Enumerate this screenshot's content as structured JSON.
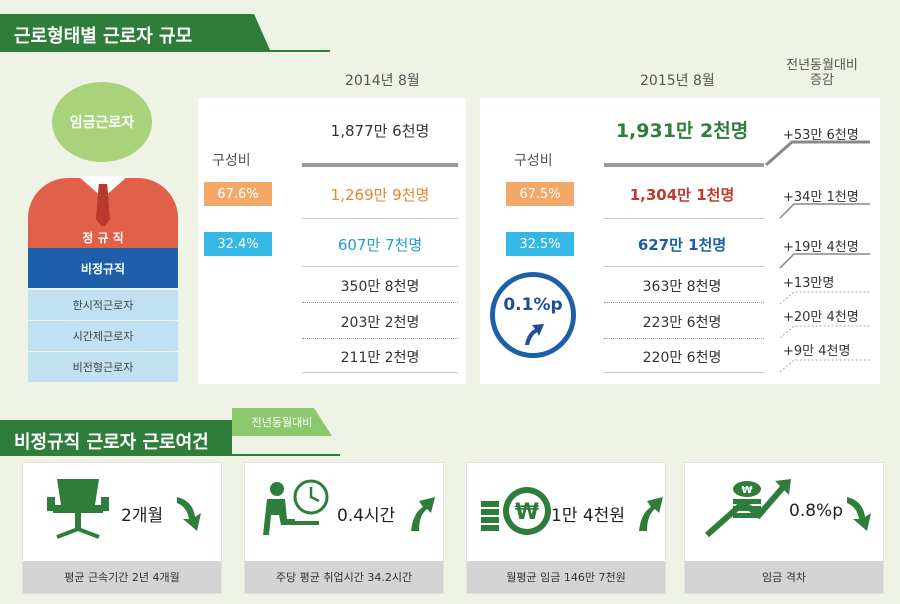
{
  "section1": {
    "title": "근로형태별 근로자 규모"
  },
  "headers": {
    "year2014": "2014년 8월",
    "year2015": "2015년 8월",
    "change": "전년동월대비 증감"
  },
  "person": {
    "head": "임금근로자",
    "regular": "정 규 직",
    "nonregular": "비정규직",
    "temporary": "한시적근로자",
    "parttime": "시간제근로자",
    "atypical": "비전형근로자"
  },
  "y2014": {
    "ratio_label": "구성비",
    "total": "1,877만 6천명",
    "regular_pct": "67.6%",
    "regular": "1,269만 9천명",
    "nonregular_pct": "32.4%",
    "nonregular": "607만 7천명",
    "temporary": "350만 8천명",
    "parttime": "203만 2천명",
    "atypical": "211만 2천명"
  },
  "y2015": {
    "ratio_label": "구성비",
    "total": "1,931만 2천명",
    "regular_pct": "67.5%",
    "regular": "1,304만 1천명",
    "nonregular_pct": "32.5%",
    "nonregular": "627만 1천명",
    "temporary": "363만 8천명",
    "parttime": "223만 6천명",
    "atypical": "220만 6천명",
    "badge": "0.1%p"
  },
  "deltas": {
    "total": "+53만 6천명",
    "regular": "+34만 1천명",
    "nonregular": "+19만 4천명",
    "temporary": "+13만명",
    "parttime": "+20만 4천명",
    "atypical": "+9만 4천명"
  },
  "section2": {
    "title": "비정규직 근로자 근로여건",
    "tag": "전년동월대비"
  },
  "cards": [
    {
      "value": "2개월",
      "caption": "평균 근속기간 2년 4개월",
      "direction": "down"
    },
    {
      "value": "0.4시간",
      "caption": "주당 평균 취업시간 34.2시간",
      "direction": "up"
    },
    {
      "value": "1만 4천원",
      "caption": "월평균 임금 146만 7천원",
      "direction": "up"
    },
    {
      "value": "0.8%p",
      "caption": "임금 격차",
      "direction": "down"
    }
  ],
  "colors": {
    "green": "#2f7d3a",
    "orange": "#f3a86a",
    "blue": "#35b8e6",
    "red_text": "#c0392b",
    "blue_text": "#1a5fa0",
    "navy": "#1d4f9a"
  }
}
